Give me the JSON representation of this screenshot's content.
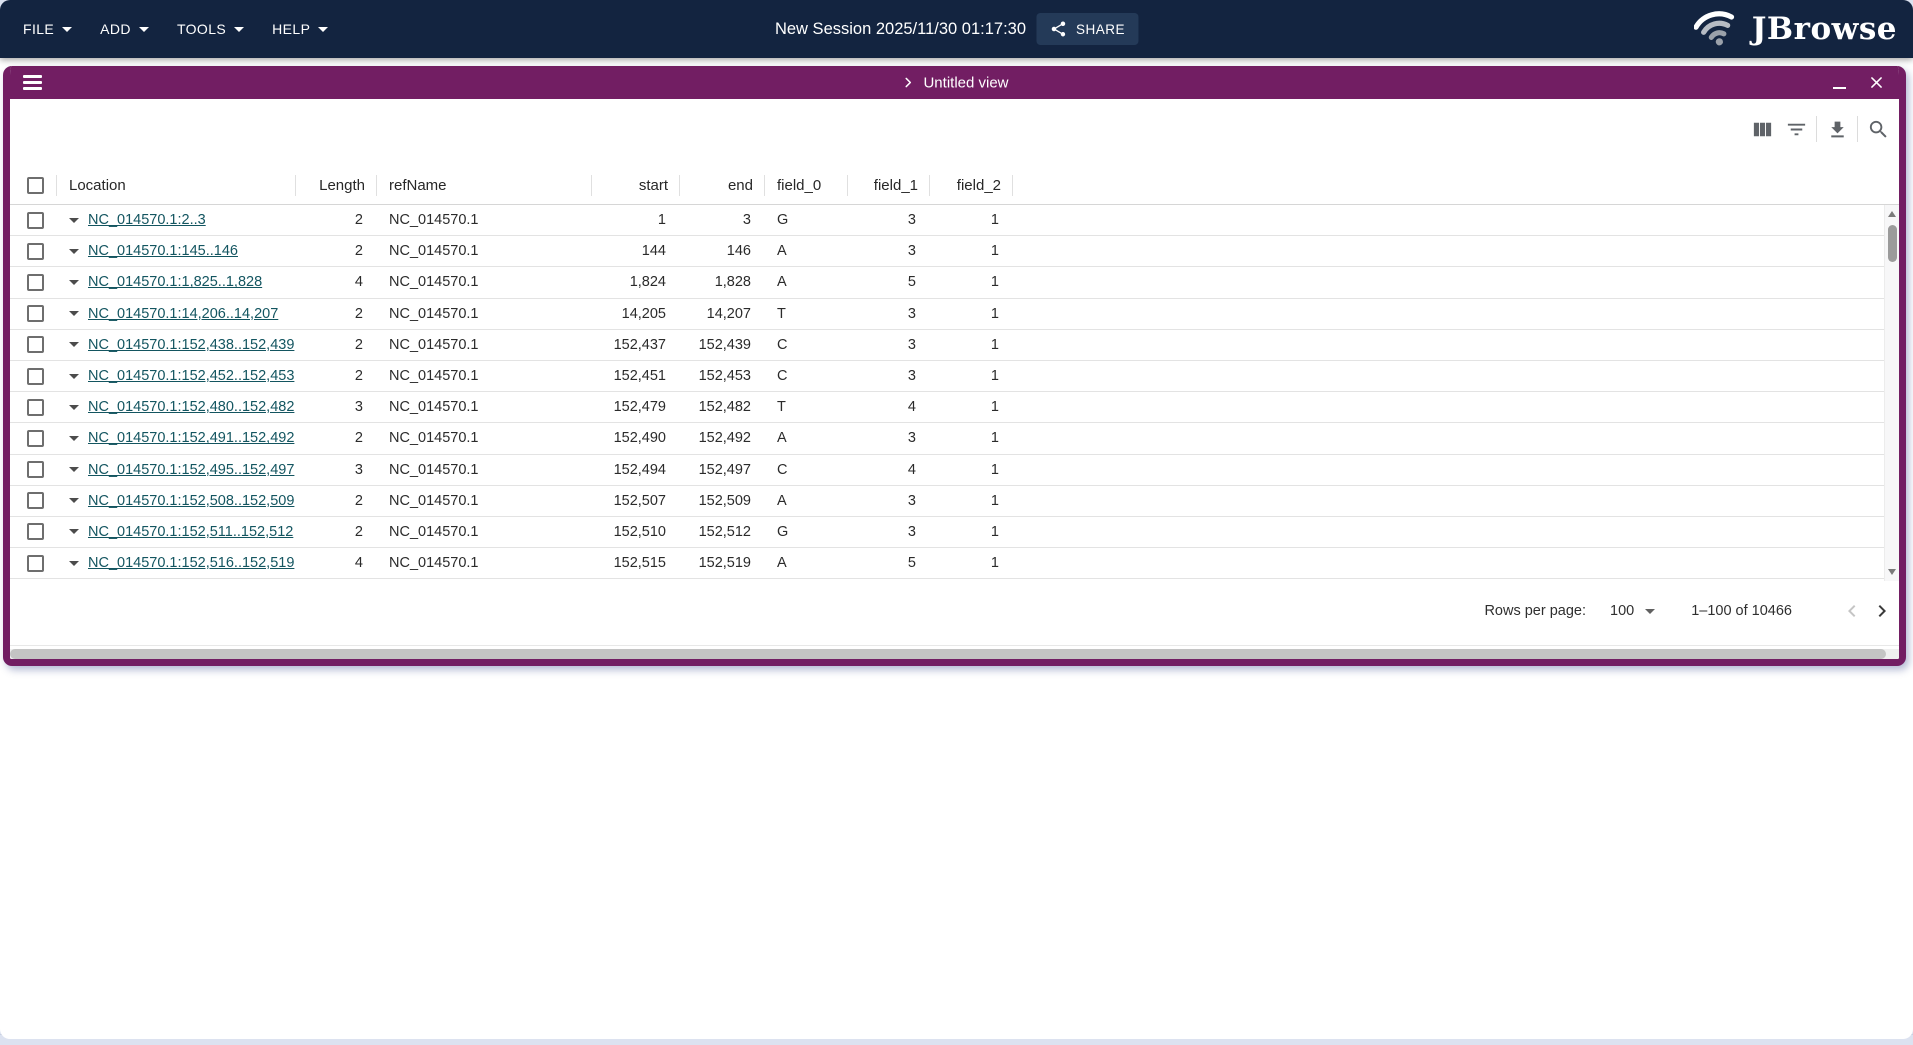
{
  "app_bar": {
    "menus": [
      {
        "label": "FILE"
      },
      {
        "label": "ADD"
      },
      {
        "label": "TOOLS"
      },
      {
        "label": "HELP"
      }
    ],
    "session_title": "New Session 2025/11/30 01:17:30",
    "share_button": "SHARE",
    "logo_text": "JBrowse"
  },
  "view": {
    "title": "Untitled view",
    "window_controls": [
      "minimize",
      "close"
    ]
  },
  "toolbar": {
    "icons": [
      "view-columns-icon",
      "filter-icon",
      "download-icon",
      "search-icon"
    ]
  },
  "table": {
    "columns": [
      {
        "label": "Location",
        "align": "left"
      },
      {
        "label": "Length",
        "align": "right"
      },
      {
        "label": "refName",
        "align": "left"
      },
      {
        "label": "start",
        "align": "right"
      },
      {
        "label": "end",
        "align": "right"
      },
      {
        "label": "field_0",
        "align": "left"
      },
      {
        "label": "field_1",
        "align": "right"
      },
      {
        "label": "field_2",
        "align": "right"
      }
    ],
    "rows": [
      {
        "location": "NC_014570.1:2..3",
        "length": "2",
        "refName": "NC_014570.1",
        "start": "1",
        "end": "3",
        "field_0": "G",
        "field_1": "3",
        "field_2": "1"
      },
      {
        "location": "NC_014570.1:145..146",
        "length": "2",
        "refName": "NC_014570.1",
        "start": "144",
        "end": "146",
        "field_0": "A",
        "field_1": "3",
        "field_2": "1"
      },
      {
        "location": "NC_014570.1:1,825..1,828",
        "length": "4",
        "refName": "NC_014570.1",
        "start": "1,824",
        "end": "1,828",
        "field_0": "A",
        "field_1": "5",
        "field_2": "1"
      },
      {
        "location": "NC_014570.1:14,206..14,207",
        "length": "2",
        "refName": "NC_014570.1",
        "start": "14,205",
        "end": "14,207",
        "field_0": "T",
        "field_1": "3",
        "field_2": "1"
      },
      {
        "location": "NC_014570.1:152,438..152,439",
        "length": "2",
        "refName": "NC_014570.1",
        "start": "152,437",
        "end": "152,439",
        "field_0": "C",
        "field_1": "3",
        "field_2": "1"
      },
      {
        "location": "NC_014570.1:152,452..152,453",
        "length": "2",
        "refName": "NC_014570.1",
        "start": "152,451",
        "end": "152,453",
        "field_0": "C",
        "field_1": "3",
        "field_2": "1"
      },
      {
        "location": "NC_014570.1:152,480..152,482",
        "length": "3",
        "refName": "NC_014570.1",
        "start": "152,479",
        "end": "152,482",
        "field_0": "T",
        "field_1": "4",
        "field_2": "1"
      },
      {
        "location": "NC_014570.1:152,491..152,492",
        "length": "2",
        "refName": "NC_014570.1",
        "start": "152,490",
        "end": "152,492",
        "field_0": "A",
        "field_1": "3",
        "field_2": "1"
      },
      {
        "location": "NC_014570.1:152,495..152,497",
        "length": "3",
        "refName": "NC_014570.1",
        "start": "152,494",
        "end": "152,497",
        "field_0": "C",
        "field_1": "4",
        "field_2": "1"
      },
      {
        "location": "NC_014570.1:152,508..152,509",
        "length": "2",
        "refName": "NC_014570.1",
        "start": "152,507",
        "end": "152,509",
        "field_0": "A",
        "field_1": "3",
        "field_2": "1"
      },
      {
        "location": "NC_014570.1:152,511..152,512",
        "length": "2",
        "refName": "NC_014570.1",
        "start": "152,510",
        "end": "152,512",
        "field_0": "G",
        "field_1": "3",
        "field_2": "1"
      },
      {
        "location": "NC_014570.1:152,516..152,519",
        "length": "4",
        "refName": "NC_014570.1",
        "start": "152,515",
        "end": "152,519",
        "field_0": "A",
        "field_1": "5",
        "field_2": "1"
      }
    ]
  },
  "pagination": {
    "rows_per_page_label": "Rows per page:",
    "rows_per_page_value": "100",
    "range_label": "1–100 of 10466"
  },
  "colors": {
    "app_bar_bg": "#132440",
    "view_accent": "#721e63",
    "link_color": "#135560"
  }
}
